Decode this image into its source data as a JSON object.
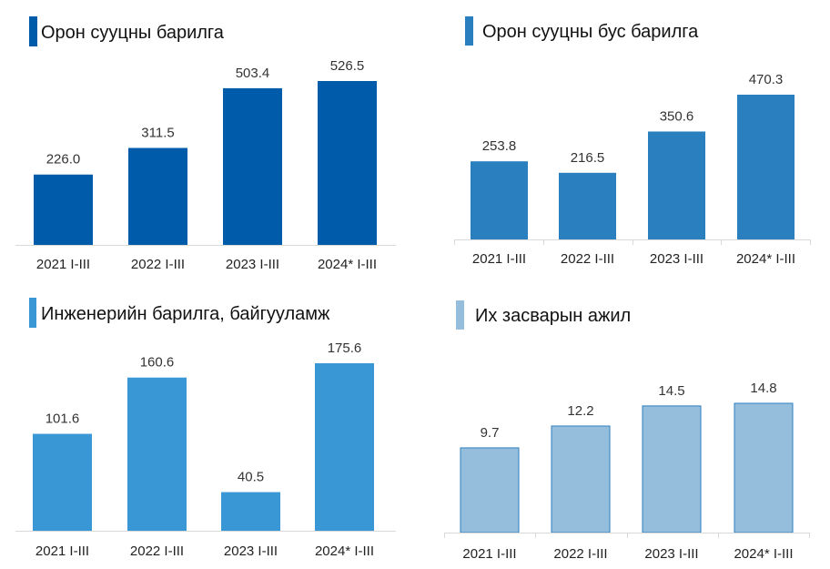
{
  "chart_data": [
    {
      "type": "bar",
      "title": "Орон сууцны барилга",
      "categories": [
        "2021 I-III",
        "2022 I-III",
        "2023 I-III",
        "2024* I-III"
      ],
      "values": [
        226.0,
        311.5,
        503.4,
        526.5
      ],
      "color": "#005bab",
      "grid": false
    },
    {
      "type": "bar",
      "title": "Орон сууцны бус барилга",
      "categories": [
        "2021 I-III",
        "2022 I-III",
        "2023 I-III",
        "2024* I-III"
      ],
      "values": [
        253.8,
        216.5,
        350.6,
        470.3
      ],
      "color": "#2a80bf",
      "grid": false
    },
    {
      "type": "bar",
      "title": "Инженерийн барилга, байгууламж",
      "categories": [
        "2021 I-III",
        "2022 I-III",
        "2023 I-III",
        "2024* I-III"
      ],
      "values": [
        101.6,
        160.6,
        40.5,
        175.6
      ],
      "color": "#3a97d6",
      "grid": false
    },
    {
      "type": "bar",
      "title": "Их засварын ажил",
      "categories": [
        "2021 I-III",
        "2022 I-III",
        "2023 I-III",
        "2024* I-III"
      ],
      "values": [
        9.7,
        12.2,
        14.5,
        14.8
      ],
      "color": "#95bedd",
      "border_color": "#2e7fbf",
      "grid": false
    }
  ]
}
